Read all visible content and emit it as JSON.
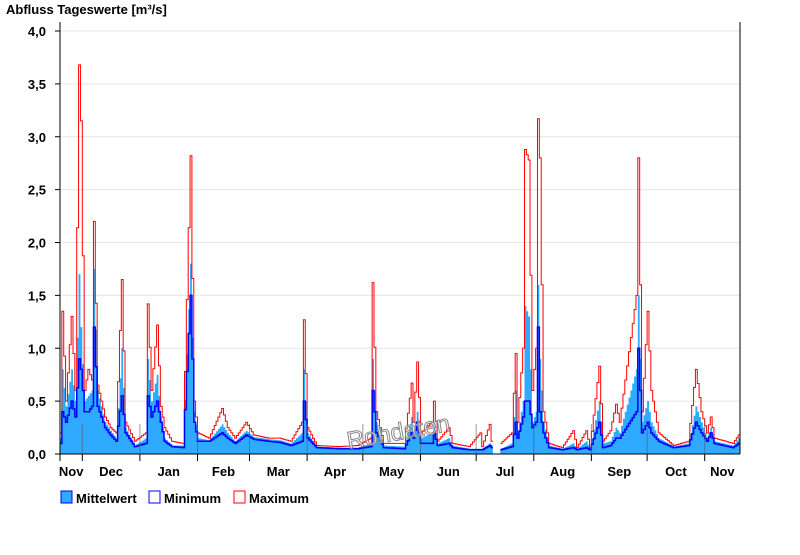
{
  "chart_data": {
    "type": "area",
    "title": "Abfluss Tageswerte [m³/s]",
    "ylabel": "Abfluss [m³/s]",
    "xlabel": "",
    "ylim": [
      0,
      4
    ],
    "xlim_days": [
      0,
      366
    ],
    "y_ticks": [
      0,
      0.5,
      1,
      1.5,
      2,
      2.5,
      3,
      3.5,
      4
    ],
    "y_tick_labels": [
      "0,0",
      "0,5",
      "1,0",
      "1,5",
      "2,0",
      "2,5",
      "3,0",
      "3,5",
      "4,0"
    ],
    "grid": "horizontal",
    "month_boundaries_day": [
      12,
      43,
      74,
      102,
      133,
      163,
      194,
      224,
      255,
      286,
      316,
      347
    ],
    "month_labels": [
      "Nov",
      "Dec",
      "Jan",
      "Feb",
      "Mar",
      "Apr",
      "May",
      "Jun",
      "Jul",
      "Aug",
      "Sep",
      "Oct",
      "Nov"
    ],
    "legend_position": "bottom-left",
    "watermark": "Rohdaten",
    "series_names": [
      "Mittelwert",
      "Minimum",
      "Maximum"
    ],
    "colors": {
      "mean_fill": "#2eaaff",
      "minimum": "#0000ff",
      "maximum": "#ff0000"
    },
    "points_columns": [
      "day",
      "mittelwert",
      "minimum",
      "maximum"
    ],
    "points": [
      [
        0,
        0.15,
        0.1,
        0.2
      ],
      [
        1,
        0.8,
        0.4,
        1.35
      ],
      [
        3,
        0.45,
        0.3,
        0.5
      ],
      [
        6,
        0.8,
        0.5,
        1.3
      ],
      [
        8,
        0.5,
        0.35,
        0.6
      ],
      [
        10,
        1.7,
        0.9,
        3.68
      ],
      [
        11,
        1.2,
        0.8,
        3.15
      ],
      [
        13,
        0.5,
        0.4,
        0.6
      ],
      [
        15,
        0.55,
        0.4,
        0.8
      ],
      [
        17,
        0.6,
        0.45,
        0.7
      ],
      [
        18,
        1.75,
        1.2,
        2.2
      ],
      [
        20,
        0.6,
        0.45,
        0.65
      ],
      [
        24,
        0.3,
        0.25,
        0.35
      ],
      [
        27,
        0.22,
        0.18,
        0.25
      ],
      [
        30,
        0.15,
        0.12,
        0.2
      ],
      [
        33,
        1.0,
        0.55,
        1.65
      ],
      [
        35,
        0.25,
        0.2,
        0.3
      ],
      [
        40,
        0.08,
        0.07,
        0.12
      ],
      [
        46,
        0.15,
        0.1,
        0.2
      ],
      [
        47,
        0.9,
        0.55,
        1.42
      ],
      [
        49,
        0.5,
        0.35,
        0.6
      ],
      [
        52,
        0.75,
        0.5,
        1.22
      ],
      [
        54,
        0.35,
        0.3,
        0.45
      ],
      [
        56,
        0.15,
        0.12,
        0.25
      ],
      [
        60,
        0.08,
        0.07,
        0.12
      ],
      [
        66,
        0.08,
        0.06,
        0.1
      ],
      [
        70,
        1.8,
        1.5,
        2.82
      ],
      [
        72,
        0.4,
        0.3,
        0.5
      ],
      [
        74,
        0.15,
        0.12,
        0.2
      ],
      [
        80,
        0.13,
        0.12,
        0.15
      ],
      [
        87,
        0.28,
        0.2,
        0.43
      ],
      [
        90,
        0.2,
        0.15,
        0.25
      ],
      [
        94,
        0.12,
        0.1,
        0.15
      ],
      [
        100,
        0.22,
        0.18,
        0.3
      ],
      [
        104,
        0.16,
        0.14,
        0.18
      ],
      [
        112,
        0.14,
        0.12,
        0.15
      ],
      [
        118,
        0.13,
        0.11,
        0.15
      ],
      [
        124,
        0.1,
        0.08,
        0.12
      ],
      [
        130,
        0.2,
        0.12,
        0.3
      ],
      [
        131,
        0.8,
        0.5,
        1.27
      ],
      [
        133,
        0.2,
        0.15,
        0.25
      ],
      [
        138,
        0.07,
        0.06,
        0.08
      ],
      [
        150,
        0.06,
        0.05,
        0.07
      ],
      [
        160,
        0.06,
        0.05,
        0.08
      ],
      [
        167,
        0.1,
        0.07,
        0.15
      ],
      [
        168,
        0.9,
        0.6,
        1.62
      ],
      [
        170,
        0.3,
        0.2,
        0.4
      ],
      [
        174,
        0.08,
        0.06,
        0.1
      ],
      [
        185,
        0.07,
        0.05,
        0.1
      ],
      [
        189,
        0.35,
        0.2,
        0.67
      ],
      [
        190,
        0.2,
        0.15,
        0.3
      ],
      [
        192,
        0.4,
        0.3,
        0.87
      ],
      [
        194,
        0.15,
        0.1,
        0.2
      ],
      [
        200,
        0.2,
        0.1,
        0.3
      ],
      [
        201,
        0.3,
        0.2,
        0.5
      ],
      [
        203,
        0.1,
        0.08,
        0.12
      ],
      [
        209,
        0.15,
        0.1,
        0.25
      ],
      [
        211,
        0.08,
        0.06,
        0.1
      ],
      [
        220,
        0.05,
        0.04,
        0.07
      ],
      [
        226,
        0.05,
        0.04,
        0.2
      ],
      [
        227,
        0.05,
        0.04,
        0.07
      ],
      [
        231,
        0.1,
        0.08,
        0.28
      ],
      [
        232,
        0.08,
        0.06,
        0.12
      ],
      [
        233,
        null,
        null,
        null
      ],
      [
        236,
        null,
        null,
        null
      ],
      [
        237,
        0.05,
        0.04,
        0.1
      ],
      [
        243,
        0.1,
        0.07,
        0.2
      ],
      [
        245,
        0.6,
        0.3,
        0.95
      ],
      [
        246,
        0.2,
        0.15,
        0.3
      ],
      [
        249,
        0.5,
        0.35,
        1.0
      ],
      [
        250,
        1.4,
        0.5,
        2.88
      ],
      [
        252,
        1.3,
        0.5,
        2.78
      ],
      [
        254,
        0.3,
        0.25,
        0.6
      ],
      [
        256,
        0.4,
        0.3,
        1.0
      ],
      [
        257,
        1.6,
        1.2,
        3.17
      ],
      [
        258,
        0.9,
        0.4,
        2.8
      ],
      [
        260,
        0.3,
        0.2,
        0.4
      ],
      [
        263,
        0.08,
        0.06,
        0.1
      ],
      [
        270,
        0.05,
        0.04,
        0.06
      ],
      [
        276,
        0.1,
        0.06,
        0.22
      ],
      [
        278,
        0.05,
        0.04,
        0.06
      ],
      [
        283,
        0.12,
        0.06,
        0.22
      ],
      [
        285,
        0.05,
        0.04,
        0.06
      ],
      [
        290,
        0.5,
        0.3,
        0.83
      ],
      [
        292,
        0.1,
        0.06,
        0.12
      ],
      [
        296,
        0.12,
        0.08,
        0.22
      ],
      [
        299,
        0.25,
        0.15,
        0.47
      ],
      [
        301,
        0.2,
        0.15,
        0.3
      ],
      [
        310,
        0.8,
        0.4,
        1.5
      ],
      [
        311,
        1.5,
        1.0,
        2.8
      ],
      [
        313,
        0.3,
        0.2,
        0.4
      ],
      [
        316,
        0.5,
        0.3,
        1.35
      ],
      [
        318,
        0.3,
        0.2,
        0.6
      ],
      [
        322,
        0.15,
        0.12,
        0.2
      ],
      [
        330,
        0.07,
        0.06,
        0.08
      ],
      [
        338,
        0.1,
        0.08,
        0.12
      ],
      [
        342,
        0.45,
        0.3,
        0.8
      ],
      [
        345,
        0.3,
        0.2,
        0.4
      ],
      [
        348,
        0.15,
        0.12,
        0.2
      ],
      [
        350,
        0.25,
        0.2,
        0.35
      ],
      [
        352,
        0.12,
        0.1,
        0.15
      ],
      [
        362,
        0.08,
        0.06,
        0.1
      ],
      [
        365,
        0.15,
        0.1,
        0.18
      ]
    ]
  }
}
